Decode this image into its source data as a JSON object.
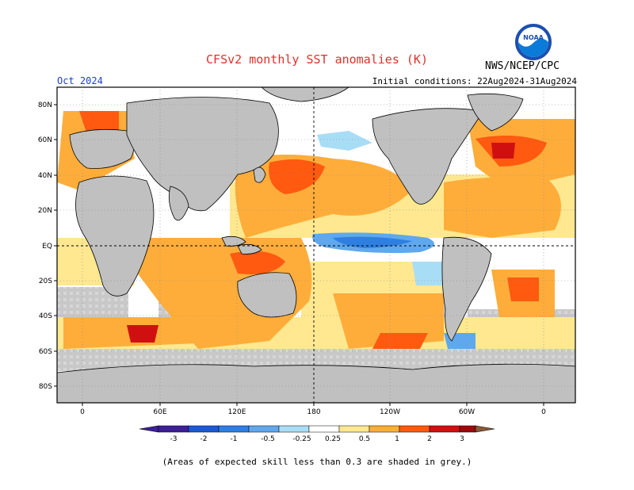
{
  "title": "CFSv2 monthly SST anomalies (K)",
  "agency": "NWS/NCEP/CPC",
  "logo_text": "NOAA",
  "forecast_month": "Oct 2024",
  "initial_conditions": "Initial conditions: 22Aug2024-31Aug2024",
  "footnote": "(Areas of expected skill less than 0.3 are shaded in grey.)",
  "lat_labels": [
    "80N",
    "60N",
    "40N",
    "20N",
    "EQ",
    "20S",
    "40S",
    "60S",
    "80S"
  ],
  "lon_labels": [
    "0",
    "60E",
    "120E",
    "180",
    "120W",
    "60W",
    "0"
  ],
  "colorbar": {
    "labels": [
      "-3",
      "-2",
      "-1",
      "-0.5",
      "-0.25",
      "0.25",
      "0.5",
      "1",
      "2",
      "3"
    ],
    "colors": [
      "#3d1f9a",
      "#1b5bd1",
      "#2e7fe0",
      "#5fa8ee",
      "#a8ddf6",
      "#ffffff",
      "#ffe890",
      "#ffad3a",
      "#ff5a10",
      "#d01010",
      "#9c0a0a",
      "#8b5a3a"
    ]
  },
  "colors": {
    "land": "#c0c0c0",
    "low_skill": "#c8c8c8",
    "title": "#e0302a",
    "month": "#1a3fd0"
  }
}
